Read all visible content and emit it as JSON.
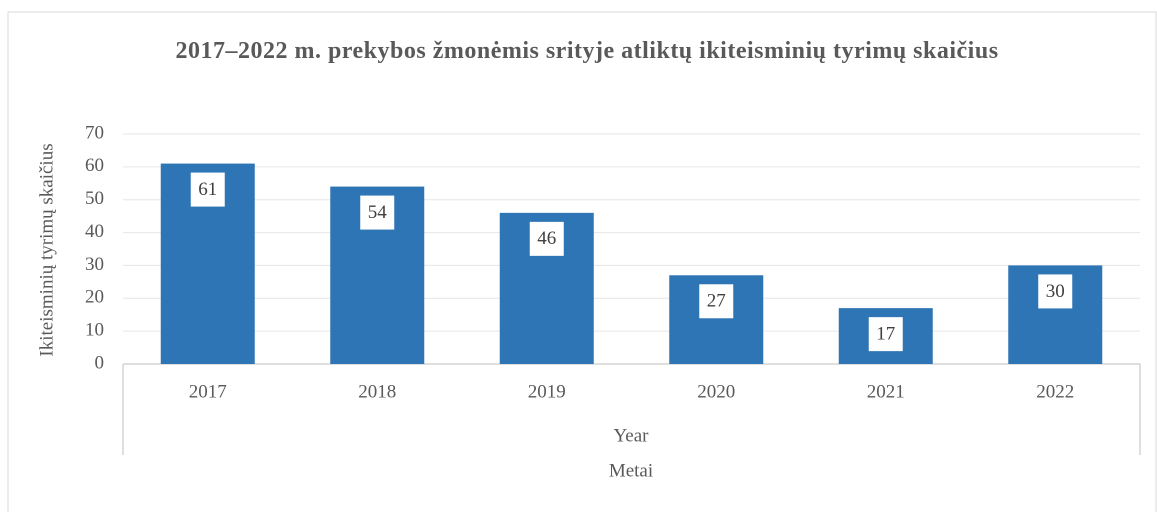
{
  "chart_data": {
    "type": "bar",
    "title": "2017–2022 m. prekybos žmonėmis srityje atliktų ikiteisminių tyrimų skaičius",
    "ylabel": "Ikiteisminių tyrimų skaičius",
    "xlabel": "Year",
    "xlabel_group": "Metai",
    "categories": [
      "2017",
      "2018",
      "2019",
      "2020",
      "2021",
      "2022"
    ],
    "values": [
      61,
      54,
      46,
      27,
      17,
      30
    ],
    "color": "#2e75b6",
    "ylim": [
      0,
      70
    ],
    "yticks": [
      0,
      10,
      20,
      30,
      40,
      50,
      60,
      70
    ],
    "grid": true
  }
}
